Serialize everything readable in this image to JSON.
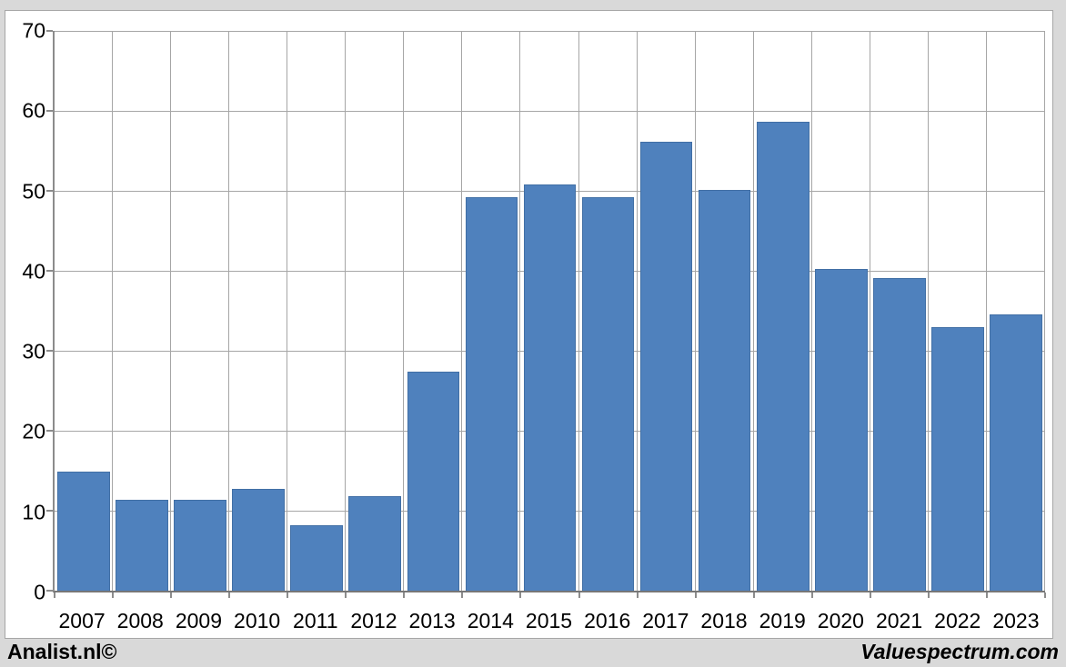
{
  "footer": {
    "left_brand": "Analist.nl©",
    "right_brand": "Valuespectrum.com"
  },
  "chart_data": {
    "type": "bar",
    "title": "",
    "xlabel": "",
    "ylabel": "",
    "categories": [
      "2007",
      "2008",
      "2009",
      "2010",
      "2011",
      "2012",
      "2013",
      "2014",
      "2015",
      "2016",
      "2017",
      "2018",
      "2019",
      "2020",
      "2021",
      "2022",
      "2023"
    ],
    "values": [
      14.9,
      11.4,
      11.4,
      12.7,
      8.2,
      11.8,
      27.4,
      49.2,
      50.8,
      49.2,
      56.1,
      50.1,
      58.6,
      40.2,
      39.1,
      32.9,
      34.6
    ],
    "ylim": [
      0,
      70
    ],
    "yticks": [
      0,
      10,
      20,
      30,
      40,
      50,
      60,
      70
    ],
    "grid": true,
    "legend": "none",
    "colors": {
      "bar_fill": "#4f81bd",
      "bar_border": "#416fa5",
      "gridline": "#a6a6a6",
      "axis_line": "#8c8c8c",
      "plot_background": "#ffffff",
      "outer_background": "#d9d9d9",
      "text": "#000000"
    }
  }
}
